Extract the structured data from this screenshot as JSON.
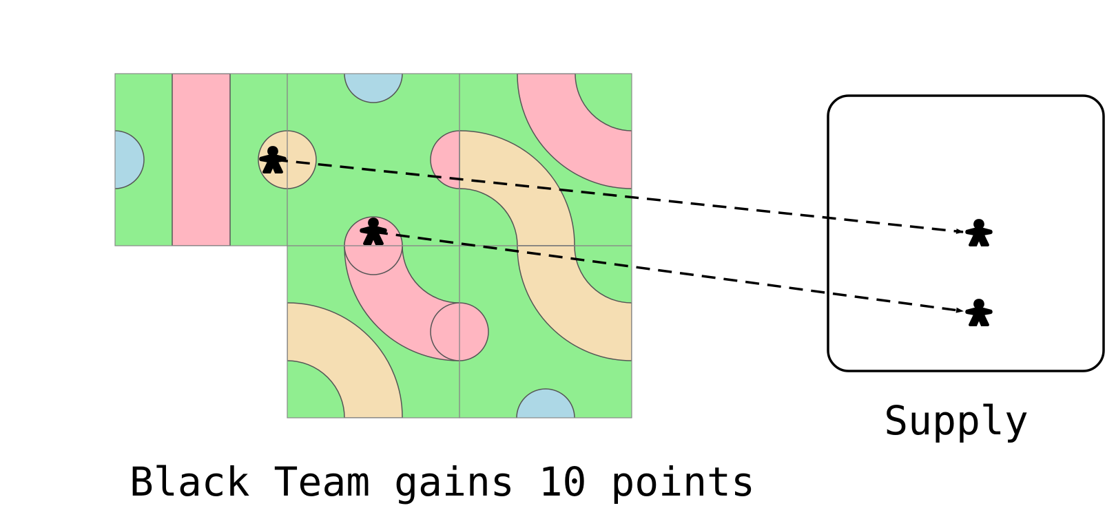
{
  "caption": "Black Team gains 10 points",
  "supply": {
    "label": "Supply"
  },
  "colors": {
    "grass": "#90ee90",
    "road": "#ffb6c1",
    "river": "#f5deb3",
    "lake": "#add8e6",
    "meeple": "#000000",
    "tile_border": "#888888"
  },
  "meeples": {
    "on_board": 2,
    "in_supply": 2,
    "team": "Black"
  },
  "icons": [
    "meeple-icon",
    "arrow-head-icon"
  ]
}
